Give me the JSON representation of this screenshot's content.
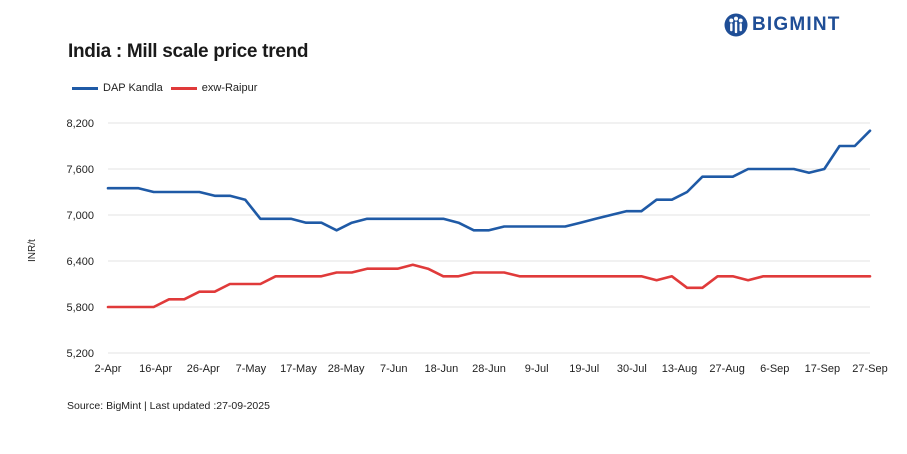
{
  "header": {
    "title": "India : Mill scale price trend",
    "logo_text": "BIGMINT"
  },
  "footer": {
    "source": "Source: BigMint | Last updated :27-09-2025"
  },
  "colors": {
    "dap_kandla": "#1f5aa6",
    "exw_raipur": "#e03a3a",
    "grid": "#e3e3e3",
    "logo": "#1f4e96"
  },
  "chart_data": {
    "type": "line",
    "title": "India : Mill scale price trend",
    "xlabel": "",
    "ylabel": "INR/t",
    "ylim": [
      5200,
      8200
    ],
    "yticks": [
      "5,200",
      "5,800",
      "6,400",
      "7,000",
      "7,600",
      "8,200"
    ],
    "ytick_values": [
      5200,
      5800,
      6400,
      7000,
      7600,
      8200
    ],
    "grid": true,
    "legend_position": "top-left",
    "x_tick_labels": [
      "2-Apr",
      "16-Apr",
      "26-Apr",
      "7-May",
      "17-May",
      "28-May",
      "7-Jun",
      "18-Jun",
      "28-Jun",
      "9-Jul",
      "19-Jul",
      "30-Jul",
      "13-Aug",
      "27-Aug",
      "6-Sep",
      "17-Sep",
      "27-Sep"
    ],
    "series": [
      {
        "name": "DAP Kandla",
        "values": [
          7350,
          7350,
          7350,
          7300,
          7300,
          7300,
          7300,
          7250,
          7250,
          7200,
          6950,
          6950,
          6950,
          6900,
          6900,
          6800,
          6900,
          6950,
          6950,
          6950,
          6950,
          6950,
          6950,
          6900,
          6800,
          6800,
          6850,
          6850,
          6850,
          6850,
          6850,
          6900,
          6950,
          7000,
          7050,
          7050,
          7200,
          7200,
          7300,
          7500,
          7500,
          7500,
          7600,
          7600,
          7600,
          7600,
          7550,
          7600,
          7900,
          7900,
          8100
        ]
      },
      {
        "name": "exw-Raipur",
        "values": [
          5800,
          5800,
          5800,
          5800,
          5900,
          5900,
          6000,
          6000,
          6100,
          6100,
          6100,
          6200,
          6200,
          6200,
          6200,
          6250,
          6250,
          6300,
          6300,
          6300,
          6350,
          6300,
          6200,
          6200,
          6250,
          6250,
          6250,
          6200,
          6200,
          6200,
          6200,
          6200,
          6200,
          6200,
          6200,
          6200,
          6150,
          6200,
          6050,
          6050,
          6200,
          6200,
          6150,
          6200,
          6200,
          6200,
          6200,
          6200,
          6200,
          6200,
          6200
        ]
      }
    ]
  }
}
